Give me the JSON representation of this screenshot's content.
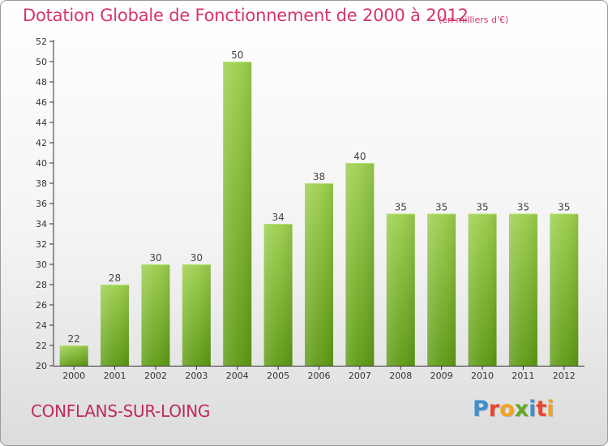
{
  "colors": {
    "title": "#d6356a",
    "commune": "#c02a5a",
    "bar_top": "#9ccf4d",
    "bar_bottom": "#5e9a14",
    "axis": "#333333",
    "grid": "#e2e2e2",
    "logo_letters": [
      "#3e8fd0",
      "#e8462f",
      "#f4a21b",
      "#63a822",
      "#3e8fd0",
      "#e8462f",
      "#f4a21b"
    ]
  },
  "header": {
    "title": "Dotation Globale de Fonctionnement de 2000 à 2012",
    "subtitle": "(en milliers d'€)"
  },
  "footer": {
    "commune": "CONFLANS-SUR-LOING",
    "logo_text": "Proxiti",
    "logo_letters": [
      "P",
      "r",
      "o",
      "x",
      "i",
      "t",
      "i"
    ]
  },
  "chart_data": {
    "type": "bar",
    "title": "Dotation Globale de Fonctionnement de 2000 à 2012",
    "subtitle": "(en milliers d'€)",
    "xlabel": "",
    "ylabel": "",
    "categories": [
      "2000",
      "2001",
      "2002",
      "2003",
      "2004",
      "2005",
      "2006",
      "2007",
      "2008",
      "2009",
      "2010",
      "2011",
      "2012"
    ],
    "values": [
      22,
      28,
      30,
      30,
      50,
      34,
      38,
      40,
      35,
      35,
      35,
      35,
      35
    ],
    "data_labels": [
      "22",
      "28",
      "30",
      "30",
      "50",
      "34",
      "38",
      "40",
      "35",
      "35",
      "35",
      "35",
      "35"
    ],
    "ylim": [
      20,
      52
    ],
    "yticks": [
      20,
      22,
      24,
      26,
      28,
      30,
      32,
      34,
      36,
      38,
      40,
      42,
      44,
      46,
      48,
      50,
      52
    ],
    "grid": false
  }
}
